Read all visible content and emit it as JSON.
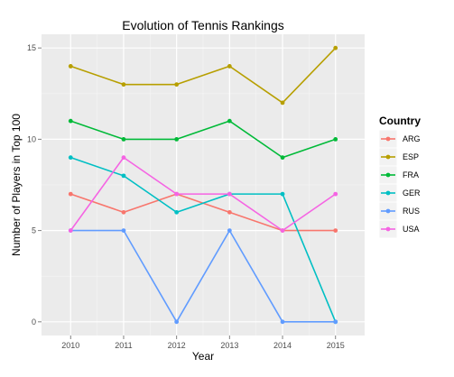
{
  "chart_data": {
    "type": "line",
    "title": "Evolution of Tennis Rankings",
    "xlabel": "Year",
    "ylabel": "Number of Players in Top 100",
    "x": [
      2010,
      2011,
      2012,
      2013,
      2014,
      2015
    ],
    "xlim": [
      2009.45,
      2015.55
    ],
    "ylim": [
      -0.75,
      15.75
    ],
    "yticks": [
      0,
      5,
      10,
      15
    ],
    "grid": true,
    "legend": {
      "title": "Country",
      "placement": "right"
    },
    "series": [
      {
        "name": "ARG",
        "color": "#F8766D",
        "values": [
          7,
          6,
          7,
          6,
          5,
          5
        ]
      },
      {
        "name": "ESP",
        "color": "#B79F00",
        "values": [
          14,
          13,
          13,
          14,
          12,
          15
        ]
      },
      {
        "name": "FRA",
        "color": "#00BA38",
        "values": [
          11,
          10,
          10,
          11,
          9,
          10
        ]
      },
      {
        "name": "GER",
        "color": "#00BFC4",
        "values": [
          9,
          8,
          6,
          7,
          7,
          0
        ]
      },
      {
        "name": "RUS",
        "color": "#619CFF",
        "values": [
          5,
          5,
          0,
          5,
          0,
          0
        ]
      },
      {
        "name": "USA",
        "color": "#F564E3",
        "values": [
          5,
          9,
          7,
          7,
          5,
          7
        ]
      }
    ]
  }
}
